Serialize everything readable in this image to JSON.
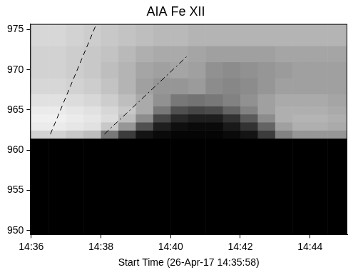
{
  "chart_data": {
    "type": "heatmap",
    "title": "AIA Fe XII",
    "x_label": "Start Time (26-Apr-17 14:35:58)",
    "xlim": [
      35.97,
      45.07
    ],
    "ylim": [
      949.5,
      975.7
    ],
    "xticks": [
      {
        "value": 36,
        "label": "14:36"
      },
      {
        "value": 38,
        "label": "14:38"
      },
      {
        "value": 40,
        "label": "14:40"
      },
      {
        "value": 42,
        "label": "14:42"
      },
      {
        "value": 44,
        "label": "14:44"
      }
    ],
    "yticks": [
      950,
      955,
      960,
      965,
      970,
      975
    ],
    "grid": false,
    "zlim": [
      0,
      255
    ],
    "x_edges": [
      35.97,
      36.5,
      37,
      37.5,
      38,
      38.5,
      39,
      39.5,
      40,
      40.5,
      41,
      41.5,
      42,
      42.5,
      43,
      43.5,
      44,
      44.5,
      45,
      45.07
    ],
    "y_edges": [
      949.5,
      961.5,
      962.5,
      963.5,
      964.5,
      965.5,
      967,
      969,
      971,
      973,
      975.7
    ],
    "cells": [
      [
        0,
        0,
        0,
        0,
        0,
        0,
        0,
        0,
        0,
        0,
        0,
        0,
        0,
        0,
        0,
        0,
        0,
        0,
        0
      ],
      [
        210,
        210,
        200,
        190,
        120,
        60,
        20,
        10,
        5,
        5,
        5,
        10,
        20,
        60,
        130,
        150,
        150,
        150,
        150
      ],
      [
        235,
        235,
        230,
        225,
        200,
        150,
        80,
        30,
        15,
        10,
        10,
        25,
        50,
        100,
        160,
        175,
        175,
        170,
        170
      ],
      [
        240,
        240,
        235,
        230,
        220,
        190,
        140,
        70,
        40,
        30,
        30,
        50,
        90,
        140,
        175,
        180,
        180,
        175,
        175
      ],
      [
        235,
        235,
        230,
        225,
        215,
        200,
        170,
        120,
        80,
        70,
        75,
        100,
        130,
        160,
        175,
        175,
        175,
        170,
        170
      ],
      [
        225,
        225,
        220,
        215,
        205,
        190,
        170,
        145,
        120,
        115,
        120,
        130,
        145,
        160,
        170,
        170,
        170,
        165,
        165
      ],
      [
        215,
        215,
        210,
        205,
        195,
        180,
        160,
        150,
        150,
        155,
        140,
        135,
        140,
        150,
        160,
        160,
        160,
        160,
        160
      ],
      [
        210,
        210,
        205,
        200,
        190,
        180,
        165,
        160,
        165,
        160,
        145,
        140,
        145,
        150,
        155,
        160,
        160,
        160,
        160
      ],
      [
        210,
        210,
        205,
        200,
        195,
        185,
        175,
        170,
        170,
        165,
        160,
        160,
        160,
        160,
        165,
        165,
        165,
        165,
        165
      ],
      [
        215,
        215,
        210,
        205,
        200,
        195,
        190,
        185,
        185,
        180,
        180,
        180,
        180,
        180,
        180,
        180,
        180,
        180,
        180
      ]
    ],
    "lines": [
      {
        "x": [
          36.55,
          37.85
        ],
        "y": [
          962,
          975.5
        ],
        "color": "#000000",
        "line_style": "dashed"
      },
      {
        "x": [
          38.1,
          40.5
        ],
        "y": [
          962,
          971.8
        ],
        "color": "#000000",
        "line_style": "dashdot"
      }
    ]
  }
}
